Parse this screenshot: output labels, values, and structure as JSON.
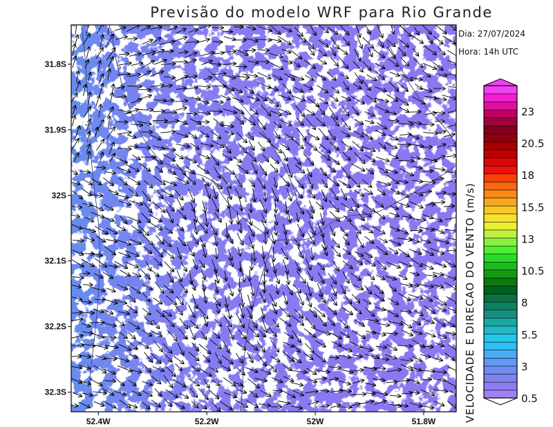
{
  "title": "Previsão do modelo WRF para Rio Grande",
  "info": {
    "date": "Dia: 27/07/2024",
    "time": "Hora: 14h UTC"
  },
  "map": {
    "lon_range": [
      -52.45,
      -51.74
    ],
    "lat_range": [
      -32.33,
      -31.74
    ],
    "y_ticks": [
      {
        "value": -31.8,
        "label": "31.8S"
      },
      {
        "value": -31.9,
        "label": "31.9S"
      },
      {
        "value": -32.0,
        "label": "32S"
      },
      {
        "value": -32.1,
        "label": "32.1S"
      },
      {
        "value": -32.2,
        "label": "32.2S"
      },
      {
        "value": -32.3,
        "label": "32.3S"
      }
    ],
    "x_ticks": [
      {
        "value": -52.4,
        "label": "52.4W"
      },
      {
        "value": -52.2,
        "label": "52.2W"
      },
      {
        "value": -52.0,
        "label": "52W"
      },
      {
        "value": -51.8,
        "label": "51.8W"
      }
    ],
    "field_colors": {
      "base": "#8a78f0",
      "blue": "#6f8ff0",
      "white": "#ffffff",
      "coast": "#404080",
      "arrow": "#000000"
    }
  },
  "colorbar": {
    "title": "VELOCIDADE E DIRECAO DO VENTO (m/s)",
    "labels": [
      {
        "value": 0.5,
        "text": "0.5"
      },
      {
        "value": 3,
        "text": "3"
      },
      {
        "value": 5.5,
        "text": "5.5"
      },
      {
        "value": 8,
        "text": "8"
      },
      {
        "value": 10.5,
        "text": "10.5"
      },
      {
        "value": 13,
        "text": "13"
      },
      {
        "value": 15.5,
        "text": "15.5"
      },
      {
        "value": 18,
        "text": "18"
      },
      {
        "value": 20.5,
        "text": "20.5"
      },
      {
        "value": 23,
        "text": "23"
      }
    ],
    "colors": [
      "#a07ef5",
      "#8c7ef0",
      "#7e82ee",
      "#6f8bef",
      "#5f9bf2",
      "#4aacf5",
      "#2fbef5",
      "#22c8e8",
      "#22b8c8",
      "#1aa8a0",
      "#159080",
      "#10805f",
      "#0a7040",
      "#046020",
      "#0a7a0a",
      "#149a14",
      "#1cbb1c",
      "#2ad82a",
      "#50ee30",
      "#8af040",
      "#c0f040",
      "#e8f030",
      "#f8e030",
      "#f8c828",
      "#f8a820",
      "#f88818",
      "#f86810",
      "#f84008",
      "#f01010",
      "#d80808",
      "#c00000",
      "#a80000",
      "#900010",
      "#800020",
      "#a00040",
      "#c00060",
      "#e010a0",
      "#f020d0",
      "#f040f0"
    ],
    "range": [
      0.5,
      25
    ]
  }
}
